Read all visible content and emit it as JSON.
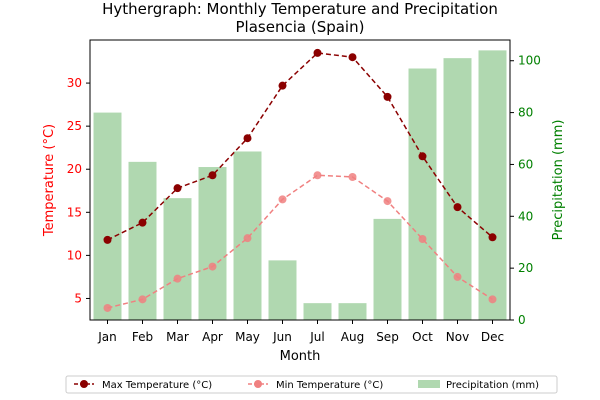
{
  "chart_data": {
    "type": "bar",
    "title": "Hythergraph: Monthly Temperature and Precipitation",
    "subtitle": "Plasencia (Spain)",
    "xlabel": "Month",
    "ylabel_left": "Temperature (°C)",
    "ylabel_right": "Precipitation (mm)",
    "categories": [
      "Jan",
      "Feb",
      "Mar",
      "Apr",
      "May",
      "Jun",
      "Jul",
      "Aug",
      "Sep",
      "Oct",
      "Nov",
      "Dec"
    ],
    "ylim_left": [
      2.5,
      35
    ],
    "ylim_right": [
      0,
      108
    ],
    "yticks_left": [
      5,
      10,
      15,
      20,
      25,
      30
    ],
    "yticks_right": [
      0,
      20,
      40,
      60,
      80,
      100
    ],
    "series": [
      {
        "name": "Max Temperature (°C)",
        "kind": "line",
        "axis": "left",
        "color": "#8b0000",
        "linestyle": "dashed",
        "marker": "circle",
        "values": [
          11.8,
          13.8,
          17.8,
          19.3,
          23.6,
          29.7,
          33.5,
          33.0,
          28.4,
          21.5,
          15.6,
          12.1
        ]
      },
      {
        "name": "Min Temperature (°C)",
        "kind": "line",
        "axis": "left",
        "color": "#f08080",
        "linestyle": "dashed",
        "marker": "circle",
        "values": [
          3.9,
          4.9,
          7.3,
          8.7,
          12.0,
          16.5,
          19.3,
          19.1,
          16.3,
          11.9,
          7.5,
          4.9
        ]
      },
      {
        "name": "Precipitation (mm)",
        "kind": "bar",
        "axis": "right",
        "color": "#b0d8b0",
        "values": [
          80,
          61,
          47,
          59,
          65,
          23,
          6.5,
          6.5,
          39,
          97,
          101,
          104
        ]
      }
    ],
    "axis_colors": {
      "left": "#ff0000",
      "right": "#008000"
    },
    "grid": false,
    "legend_placement": "bottom-center"
  }
}
